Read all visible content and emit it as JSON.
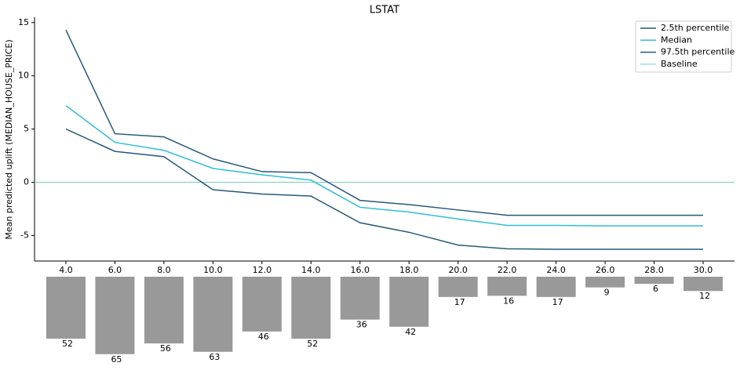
{
  "chart_data": {
    "type": "line",
    "title": "LSTAT",
    "y_label": "Mean predicted uplift (MEDIAN_HOUSE_PRICE)",
    "x": [
      4,
      6,
      8,
      10,
      12,
      14,
      16,
      18,
      20,
      22,
      24,
      26,
      28,
      30
    ],
    "xlim": [
      2.72,
      31.28
    ],
    "xticks": [
      {
        "value": 4,
        "label": "4.0"
      },
      {
        "value": 6,
        "label": "6.0"
      },
      {
        "value": 8,
        "label": "8.0"
      },
      {
        "value": 10,
        "label": "10.0"
      },
      {
        "value": 12,
        "label": "12.0"
      },
      {
        "value": 14,
        "label": "14.0"
      },
      {
        "value": 16,
        "label": "16.0"
      },
      {
        "value": 18,
        "label": "18.0"
      },
      {
        "value": 20,
        "label": "20.0"
      },
      {
        "value": 22,
        "label": "22.0"
      },
      {
        "value": 24,
        "label": "24.0"
      },
      {
        "value": 26,
        "label": "26.0"
      },
      {
        "value": 28,
        "label": "28.0"
      },
      {
        "value": 30,
        "label": "30.0"
      }
    ],
    "ylim": [
      -7.4,
      15.5
    ],
    "yticks": [
      -5,
      0,
      5,
      10,
      15
    ],
    "series": [
      {
        "name": "2.5th percentile",
        "color": "#27597a",
        "values": [
          5.0,
          2.9,
          2.4,
          -0.7,
          -1.1,
          -1.3,
          -3.8,
          -4.7,
          -5.9,
          -6.25,
          -6.3,
          -6.3,
          -6.3,
          -6.3
        ]
      },
      {
        "name": "Median",
        "color": "#2fbfd6",
        "values": [
          7.2,
          3.75,
          3.0,
          1.3,
          0.7,
          0.2,
          -2.35,
          -2.8,
          -3.45,
          -4.05,
          -4.05,
          -4.1,
          -4.1,
          -4.1
        ]
      },
      {
        "name": "97.5th percentile",
        "color": "#27597a",
        "values": [
          14.3,
          4.56,
          4.26,
          2.2,
          1.0,
          0.9,
          -1.7,
          -2.1,
          -2.6,
          -3.1,
          -3.1,
          -3.1,
          -3.1,
          -3.1
        ]
      }
    ],
    "baseline": {
      "name": "Baseline",
      "value": 0,
      "color": "#7ccdb8"
    },
    "legend": "upper right",
    "counts": {
      "color": "#999999",
      "values": [
        52,
        65,
        56,
        63,
        46,
        52,
        36,
        42,
        17,
        16,
        17,
        9,
        6,
        12
      ]
    }
  }
}
